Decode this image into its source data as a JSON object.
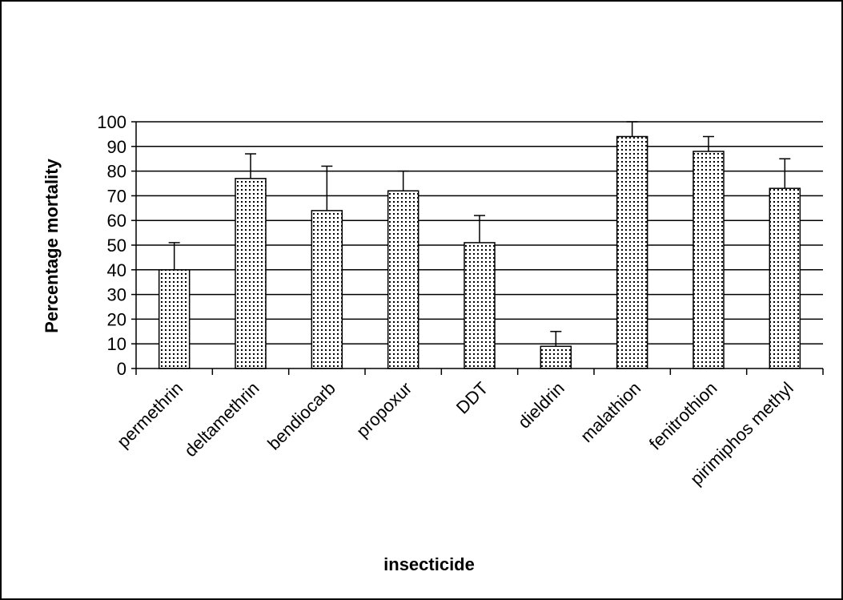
{
  "chart_data": {
    "type": "bar",
    "title": "",
    "xlabel": "insecticide",
    "ylabel": "Percentage mortality",
    "categories": [
      "permethrin",
      "deltamethrin",
      "bendiocarb",
      "propoxur",
      "DDT",
      "dieldrin",
      "malathion",
      "fenitrothion",
      "pirimiphos methyl"
    ],
    "values": [
      40,
      77,
      64,
      72,
      51,
      9,
      94,
      88,
      73
    ],
    "error_upper": [
      51,
      87,
      82,
      80,
      62,
      15,
      100,
      94,
      85
    ],
    "ylim": [
      0,
      100
    ],
    "yticks": [
      0,
      10,
      20,
      30,
      40,
      50,
      60,
      70,
      80,
      90,
      100
    ],
    "grid": true,
    "legend": "none",
    "bar_fill": "dotted",
    "colors": {
      "bar_dots": "#000000",
      "bar_background": "#ffffff",
      "gridline": "#000000"
    }
  }
}
